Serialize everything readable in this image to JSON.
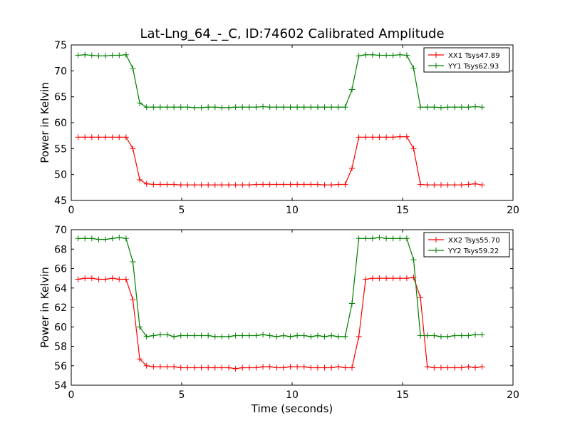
{
  "figure": {
    "title": "Lat-Lng_64_-_C, ID:74602 Calibrated Amplitude",
    "xlabel": "Time (seconds)"
  },
  "colors": {
    "xx": "#ff0000",
    "yy": "#008000"
  },
  "chart_data": [
    {
      "type": "line",
      "ylabel": "Power in Kelvin",
      "xlim": [
        0,
        20
      ],
      "ylim": [
        45,
        75
      ],
      "xticks": [
        0,
        5,
        10,
        15,
        20
      ],
      "yticks": [
        45,
        50,
        55,
        60,
        65,
        70,
        75
      ],
      "legend": "top-right",
      "grid": false,
      "x": [
        0.31,
        0.62,
        0.93,
        1.24,
        1.55,
        1.86,
        2.17,
        2.48,
        2.79,
        3.1,
        3.41,
        3.72,
        4.03,
        4.34,
        4.65,
        4.96,
        5.27,
        5.58,
        5.89,
        6.2,
        6.51,
        6.82,
        7.13,
        7.44,
        7.75,
        8.06,
        8.37,
        8.68,
        8.99,
        9.3,
        9.61,
        9.92,
        10.23,
        10.54,
        10.85,
        11.16,
        11.47,
        11.78,
        12.09,
        12.4,
        12.71,
        13.02,
        13.33,
        13.64,
        13.95,
        14.26,
        14.57,
        14.88,
        15.19,
        15.5,
        15.81,
        16.12,
        16.43,
        16.74,
        17.05,
        17.36,
        17.67,
        17.98,
        18.29,
        18.6
      ],
      "series": [
        {
          "name": "XX1 Tsys47.89",
          "color_key": "xx",
          "values": [
            57.2,
            57.2,
            57.2,
            57.2,
            57.2,
            57.2,
            57.2,
            57.2,
            55.0,
            49.0,
            48.2,
            48.1,
            48.1,
            48.1,
            48.1,
            48.0,
            48.0,
            48.0,
            48.0,
            48.0,
            48.0,
            48.0,
            48.0,
            48.0,
            48.0,
            48.0,
            48.1,
            48.1,
            48.1,
            48.1,
            48.1,
            48.1,
            48.1,
            48.1,
            48.1,
            48.1,
            48.0,
            48.0,
            48.1,
            48.1,
            51.2,
            57.2,
            57.2,
            57.2,
            57.2,
            57.2,
            57.2,
            57.3,
            57.3,
            55.0,
            48.1,
            48.0,
            48.0,
            48.0,
            48.0,
            48.0,
            48.0,
            48.1,
            48.2,
            48.0
          ]
        },
        {
          "name": "YY1 Tsys62.93",
          "color_key": "yy",
          "values": [
            73.0,
            73.1,
            73.0,
            72.9,
            72.9,
            73.0,
            73.0,
            73.1,
            70.5,
            63.8,
            63.0,
            63.0,
            63.0,
            63.0,
            63.0,
            63.0,
            63.0,
            62.9,
            62.9,
            63.0,
            63.0,
            62.9,
            62.9,
            63.0,
            63.0,
            63.0,
            63.0,
            63.1,
            63.0,
            63.0,
            63.0,
            63.0,
            63.0,
            63.0,
            63.0,
            63.0,
            63.0,
            63.0,
            63.0,
            63.0,
            66.4,
            72.9,
            73.1,
            73.1,
            73.0,
            73.0,
            73.0,
            73.1,
            73.0,
            70.5,
            63.0,
            63.0,
            63.0,
            62.9,
            63.0,
            63.0,
            63.0,
            63.0,
            63.1,
            63.0
          ]
        }
      ]
    },
    {
      "type": "line",
      "ylabel": "Power in Kelvin",
      "xlim": [
        0,
        20
      ],
      "ylim": [
        54,
        70
      ],
      "xticks": [
        0,
        5,
        10,
        15,
        20
      ],
      "yticks": [
        54,
        56,
        58,
        60,
        62,
        64,
        66,
        68,
        70
      ],
      "legend": "top-right",
      "grid": false,
      "x": [
        0.31,
        0.62,
        0.93,
        1.24,
        1.55,
        1.86,
        2.17,
        2.48,
        2.79,
        3.1,
        3.41,
        3.72,
        4.03,
        4.34,
        4.65,
        4.96,
        5.27,
        5.58,
        5.89,
        6.2,
        6.51,
        6.82,
        7.13,
        7.44,
        7.75,
        8.06,
        8.37,
        8.68,
        8.99,
        9.3,
        9.61,
        9.92,
        10.23,
        10.54,
        10.85,
        11.16,
        11.47,
        11.78,
        12.09,
        12.4,
        12.71,
        13.02,
        13.33,
        13.64,
        13.95,
        14.26,
        14.57,
        14.88,
        15.19,
        15.5,
        15.81,
        16.12,
        16.43,
        16.74,
        17.05,
        17.36,
        17.67,
        17.98,
        18.29,
        18.6
      ],
      "series": [
        {
          "name": "XX2 Tsys55.70",
          "color_key": "xx",
          "values": [
            64.9,
            65.0,
            65.0,
            64.9,
            64.9,
            65.0,
            64.9,
            64.9,
            62.8,
            56.7,
            56.0,
            55.9,
            55.9,
            55.9,
            55.9,
            55.8,
            55.8,
            55.8,
            55.8,
            55.8,
            55.8,
            55.8,
            55.8,
            55.7,
            55.8,
            55.8,
            55.8,
            55.9,
            55.9,
            55.8,
            55.8,
            55.9,
            55.9,
            55.9,
            55.8,
            55.8,
            55.8,
            55.8,
            55.9,
            55.8,
            55.8,
            59.0,
            64.9,
            65.0,
            65.0,
            65.0,
            65.0,
            65.0,
            65.0,
            65.1,
            63.0,
            55.9,
            55.8,
            55.8,
            55.8,
            55.8,
            55.8,
            55.9,
            55.8,
            55.9
          ]
        },
        {
          "name": "YY2 Tsys59.22",
          "color_key": "yy",
          "values": [
            69.1,
            69.1,
            69.1,
            69.0,
            69.0,
            69.1,
            69.2,
            69.1,
            66.7,
            60.0,
            59.0,
            59.1,
            59.2,
            59.2,
            59.0,
            59.1,
            59.1,
            59.1,
            59.1,
            59.1,
            59.0,
            59.0,
            59.0,
            59.1,
            59.1,
            59.1,
            59.1,
            59.2,
            59.1,
            59.0,
            59.1,
            59.0,
            59.1,
            59.1,
            59.0,
            59.1,
            59.0,
            59.1,
            59.0,
            59.0,
            62.4,
            69.1,
            69.1,
            69.1,
            69.2,
            69.1,
            69.1,
            69.1,
            69.1,
            66.9,
            59.1,
            59.1,
            59.1,
            59.0,
            59.0,
            59.1,
            59.1,
            59.1,
            59.2,
            59.2
          ]
        }
      ]
    }
  ]
}
